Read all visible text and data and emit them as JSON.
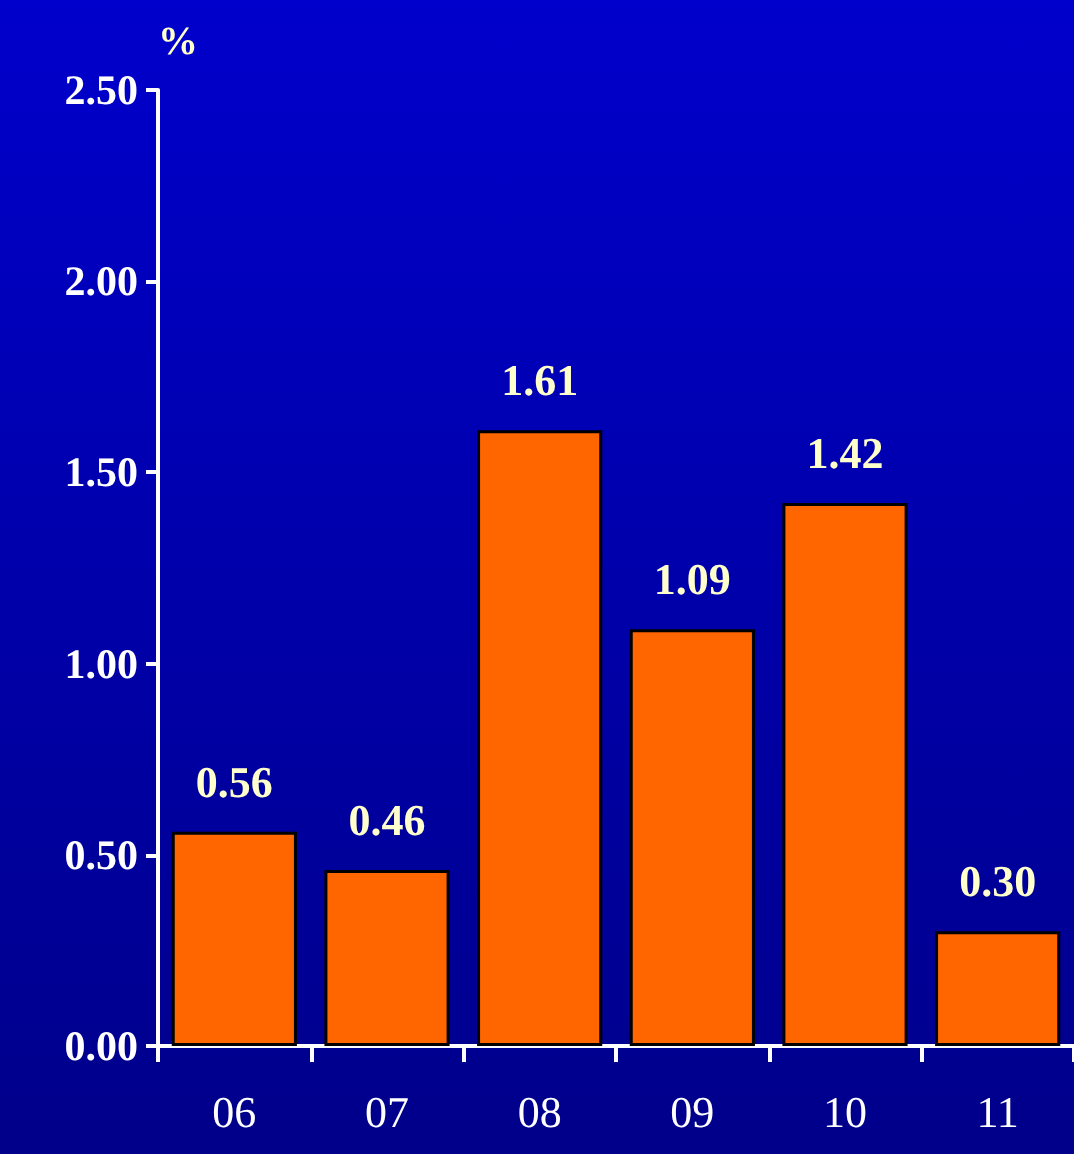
{
  "chart_data": {
    "type": "bar",
    "ylabel": "%",
    "categories": [
      "06",
      "07",
      "08",
      "09",
      "10",
      "11"
    ],
    "values": [
      0.56,
      0.46,
      1.61,
      1.09,
      1.42,
      0.3
    ],
    "color": "#ff6600",
    "ylim": [
      0,
      2.5
    ],
    "yticks": [
      {
        "value": 0,
        "label": "0.00"
      },
      {
        "value": 0.5,
        "label": "0.50"
      },
      {
        "value": 1,
        "label": "1.00"
      },
      {
        "value": 1.5,
        "label": "1.50"
      },
      {
        "value": 2,
        "label": "2.00"
      },
      {
        "value": 2.5,
        "label": "2.50"
      }
    ],
    "value_labels": [
      "0.56",
      "0.46",
      "1.61",
      "1.09",
      "1.42",
      "0.30"
    ]
  }
}
